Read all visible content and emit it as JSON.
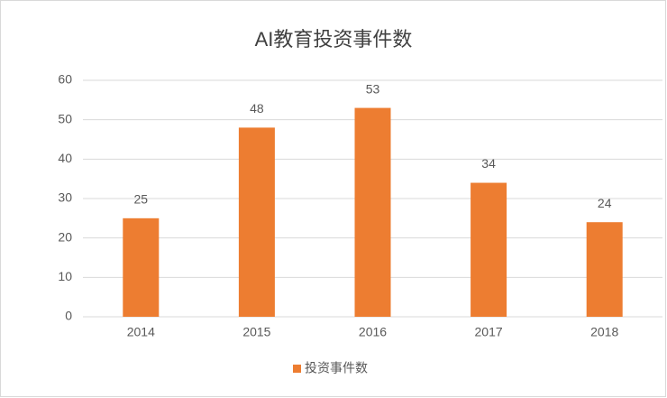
{
  "chart_data": {
    "type": "bar",
    "title": "AI教育投资事件数",
    "categories": [
      "2014",
      "2015",
      "2016",
      "2017",
      "2018"
    ],
    "series": [
      {
        "name": "投资事件数",
        "color": "#ed7d31",
        "values": [
          25,
          48,
          53,
          34,
          24
        ]
      }
    ],
    "ylim": [
      0,
      60
    ],
    "yticks": [
      0,
      10,
      20,
      30,
      40,
      50,
      60
    ],
    "grid": true,
    "legend": "bottom"
  }
}
